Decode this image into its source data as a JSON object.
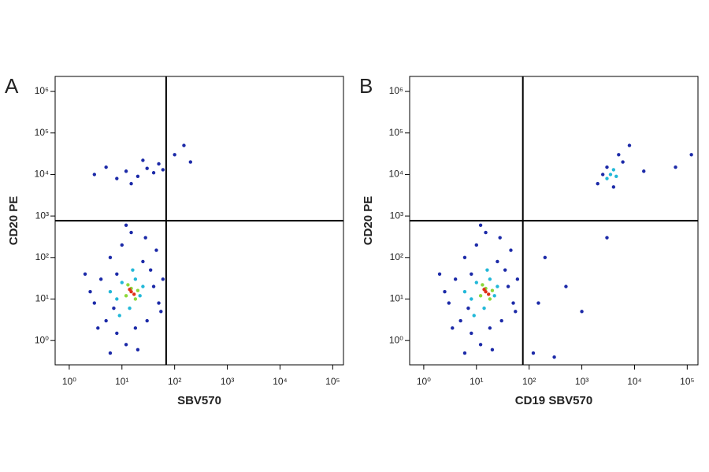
{
  "chart_data": [
    {
      "type": "scatter",
      "label": "A",
      "xlabel": "SBV570",
      "ylabel": "CD20 PE",
      "xscale": "log",
      "yscale": "log",
      "xlim": [
        0.54,
        160000
      ],
      "ylim": [
        0.26,
        2300000
      ],
      "xticks": [
        {
          "value": 1,
          "label": "10⁰"
        },
        {
          "value": 10,
          "label": "10¹"
        },
        {
          "value": 100,
          "label": "10²"
        },
        {
          "value": 1000,
          "label": "10³"
        },
        {
          "value": 10000,
          "label": "10⁴"
        },
        {
          "value": 100000,
          "label": "10⁵"
        }
      ],
      "yticks": [
        {
          "value": 1,
          "label": "10⁰"
        },
        {
          "value": 10,
          "label": "10¹"
        },
        {
          "value": 100,
          "label": "10²"
        },
        {
          "value": 1000,
          "label": "10³"
        },
        {
          "value": 10000,
          "label": "10⁴"
        },
        {
          "value": 100000,
          "label": "10⁵"
        },
        {
          "value": 1000000,
          "label": "10⁶"
        }
      ],
      "gate": {
        "x": 69,
        "y": 770
      },
      "series": [
        {
          "color": "#1c2aa8",
          "x": [
            3,
            4,
            5,
            6,
            8,
            10,
            12,
            20,
            25,
            30,
            40,
            50,
            2.5,
            3.5,
            6,
            15,
            8,
            45,
            60,
            18,
            7,
            35,
            2,
            55,
            12,
            28,
            3,
            5,
            8,
            12,
            20,
            30,
            40,
            50,
            15,
            25,
            60,
            100,
            150,
            200
          ],
          "y": [
            8,
            30,
            3,
            100,
            1.5,
            200,
            0.8,
            0.6,
            80,
            3,
            20,
            8,
            15,
            2,
            0.5,
            400,
            40,
            150,
            30,
            2,
            6,
            50,
            40,
            5,
            600,
            300,
            10000,
            15000,
            8000,
            12000,
            9000,
            14000,
            11000,
            18000,
            6000,
            22000,
            13000,
            30000,
            50000,
            20000
          ]
        },
        {
          "color": "#22b8d8",
          "x": [
            8,
            10,
            14,
            18,
            22,
            9,
            25,
            6,
            16
          ],
          "y": [
            10,
            25,
            6,
            30,
            12,
            4,
            20,
            15,
            50
          ]
        },
        {
          "color": "#8cd83a",
          "x": [
            12,
            15,
            18,
            13,
            20
          ],
          "y": [
            12,
            18,
            10,
            22,
            16
          ]
        },
        {
          "color": "#e03018",
          "x": [
            15,
            17,
            14
          ],
          "y": [
            15,
            13,
            17
          ]
        }
      ]
    },
    {
      "type": "scatter",
      "label": "B",
      "xlabel": "CD19 SBV570",
      "ylabel": "CD20 PE",
      "xscale": "log",
      "yscale": "log",
      "xlim": [
        0.54,
        160000
      ],
      "ylim": [
        0.26,
        2300000
      ],
      "xticks": [
        {
          "value": 1,
          "label": "10⁰"
        },
        {
          "value": 10,
          "label": "10¹"
        },
        {
          "value": 100,
          "label": "10²"
        },
        {
          "value": 1000,
          "label": "10³"
        },
        {
          "value": 10000,
          "label": "10⁴"
        },
        {
          "value": 100000,
          "label": "10⁵"
        }
      ],
      "yticks": [
        {
          "value": 1,
          "label": "10⁰"
        },
        {
          "value": 10,
          "label": "10¹"
        },
        {
          "value": 100,
          "label": "10²"
        },
        {
          "value": 1000,
          "label": "10³"
        },
        {
          "value": 10000,
          "label": "10⁴"
        },
        {
          "value": 100000,
          "label": "10⁵"
        },
        {
          "value": 1000000,
          "label": "10⁶"
        }
      ],
      "gate": {
        "x": 76,
        "y": 770
      },
      "series": [
        {
          "color": "#1c2aa8",
          "x": [
            3,
            4,
            5,
            6,
            8,
            10,
            12,
            20,
            25,
            30,
            40,
            50,
            2.5,
            3.5,
            6,
            15,
            8,
            45,
            60,
            18,
            7,
            35,
            2,
            55,
            12,
            28,
            200,
            500,
            1000,
            3000,
            150,
            120,
            300,
            2000,
            3000,
            4000,
            6000,
            5000,
            8000,
            15000,
            60000,
            120000,
            2500
          ],
          "y": [
            8,
            30,
            3,
            100,
            1.5,
            200,
            0.8,
            0.6,
            80,
            3,
            20,
            8,
            15,
            2,
            0.5,
            400,
            40,
            150,
            30,
            2,
            6,
            50,
            40,
            5,
            600,
            300,
            100,
            20,
            5,
            300,
            8,
            0.5,
            0.4,
            6000,
            15000,
            5000,
            20000,
            30000,
            50000,
            12000,
            15000,
            30000,
            10000
          ]
        },
        {
          "color": "#22b8d8",
          "x": [
            8,
            10,
            14,
            18,
            22,
            9,
            25,
            6,
            16,
            3500,
            4000,
            3000,
            4500
          ],
          "y": [
            10,
            25,
            6,
            30,
            12,
            4,
            20,
            15,
            50,
            10000,
            13000,
            8000,
            9000
          ]
        },
        {
          "color": "#8cd83a",
          "x": [
            12,
            15,
            18,
            13,
            20
          ],
          "y": [
            12,
            18,
            10,
            22,
            16
          ]
        },
        {
          "color": "#e03018",
          "x": [
            15,
            17,
            14
          ],
          "y": [
            15,
            13,
            17
          ]
        }
      ]
    }
  ]
}
